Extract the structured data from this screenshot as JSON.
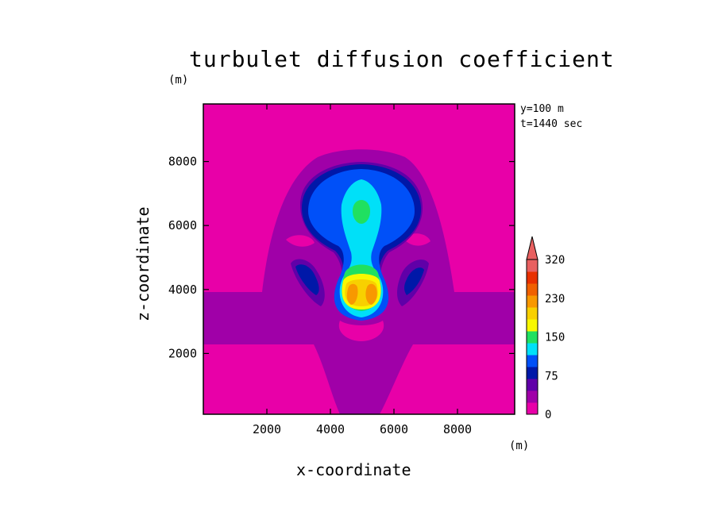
{
  "chart_data": {
    "type": "heatmap",
    "title": "turbulet diffusion coefficient",
    "xlabel": "x-coordinate",
    "ylabel": "z-coordinate",
    "x_unit": "(m)",
    "y_unit": "(m)",
    "annotations": [
      "y=100 m",
      "t=1440 sec"
    ],
    "xlim": [
      0,
      9800
    ],
    "ylim": [
      100,
      9800
    ],
    "xticks": [
      2000,
      4000,
      6000,
      8000
    ],
    "yticks": [
      2000,
      4000,
      6000,
      8000
    ],
    "colorbar": {
      "extend_max": true,
      "tick_labels": [
        "0",
        "75",
        "150",
        "230",
        "320"
      ],
      "colors": [
        "#e800a8",
        "#a000a8",
        "#6000a8",
        "#0018a8",
        "#0050f8",
        "#00e0f8",
        "#20e060",
        "#f8f800",
        "#f8d000",
        "#f89800",
        "#f06000",
        "#e83000",
        "#e86060"
      ]
    },
    "contours": [
      {
        "level": "0",
        "color": "#e800a8",
        "description": "background"
      },
      {
        "level": "25",
        "color": "#a000a8"
      },
      {
        "level": "50",
        "color": "#6000a8"
      },
      {
        "level": "75",
        "color": "#0018a8"
      },
      {
        "level": "100",
        "color": "#0050f8"
      },
      {
        "level": "150",
        "color": "#00e0f8"
      },
      {
        "level": "175",
        "color": "#20e060"
      },
      {
        "level": "200",
        "color": "#f8f800"
      },
      {
        "level": "230",
        "color": "#f8d000"
      },
      {
        "level": "260",
        "color": "#f89800"
      }
    ]
  }
}
